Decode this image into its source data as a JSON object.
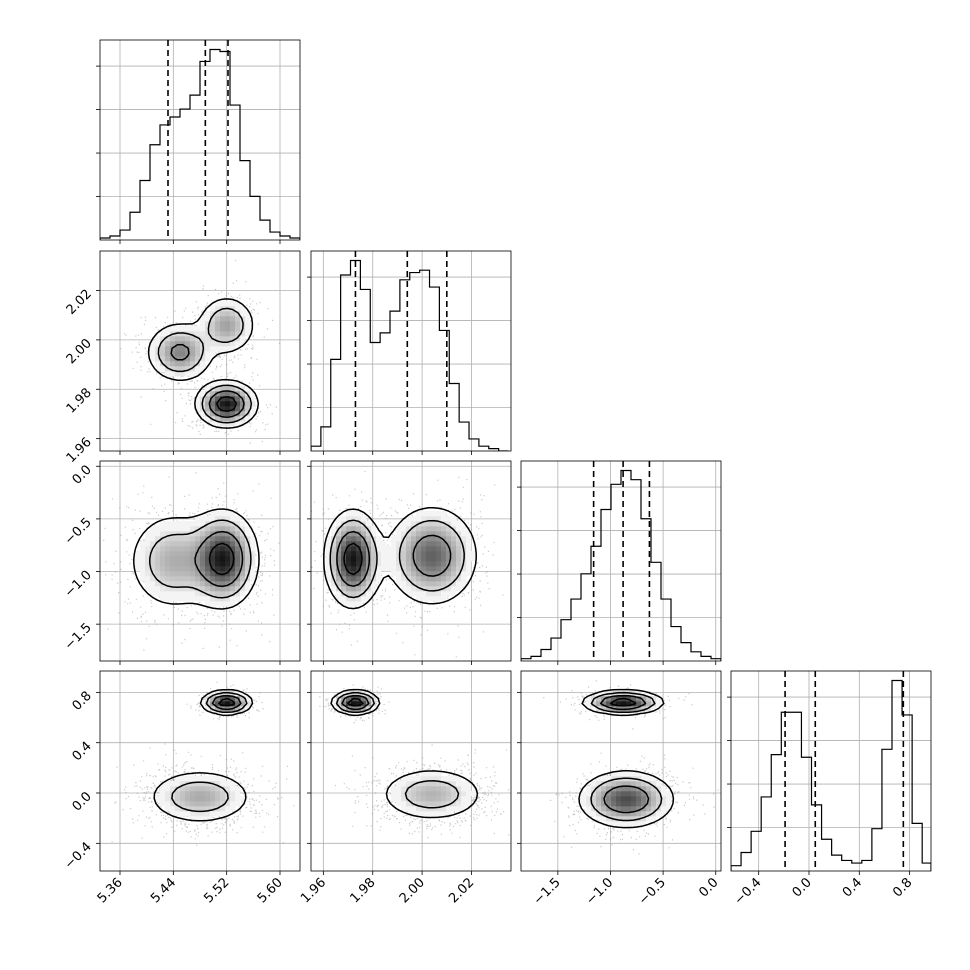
{
  "chart_data": {
    "type": "corner",
    "grid": true,
    "params": [
      {
        "ticks": [
          "5.36",
          "5.44",
          "5.52",
          "5.60"
        ],
        "tick_values": [
          5.36,
          5.44,
          5.52,
          5.6
        ],
        "range": [
          5.33,
          5.63
        ],
        "quantiles": [
          5.432,
          5.488,
          5.522
        ],
        "mode": "unimodal"
      },
      {
        "ticks": [
          "1.96",
          "1.98",
          "2.00",
          "2.02"
        ],
        "tick_values": [
          1.96,
          1.98,
          2.0,
          2.02
        ],
        "range": [
          1.955,
          2.036
        ],
        "quantiles": [
          1.973,
          1.994,
          2.01
        ],
        "mode": "bimodal"
      },
      {
        "ticks": [
          "−1.5",
          "−1.0",
          "−0.5",
          "0.0"
        ],
        "tick_values": [
          -1.5,
          -1.0,
          -0.5,
          0.0
        ],
        "range": [
          -1.85,
          0.05
        ],
        "quantiles": [
          -1.16,
          -0.88,
          -0.63
        ],
        "mode": "unimodal"
      },
      {
        "ticks": [
          "−0.4",
          "0.0",
          "0.4",
          "0.8"
        ],
        "tick_values": [
          -0.4,
          0.0,
          0.4,
          0.8
        ],
        "range": [
          -0.62,
          0.97
        ],
        "quantiles": [
          -0.19,
          0.05,
          0.75
        ],
        "mode": "bimodal"
      }
    ],
    "histograms": [
      {
        "param": 0,
        "bin_edges": [
          5.33,
          5.345,
          5.36,
          5.375,
          5.39,
          5.405,
          5.42,
          5.435,
          5.45,
          5.465,
          5.48,
          5.495,
          5.51,
          5.525,
          5.54,
          5.555,
          5.57,
          5.585,
          5.6,
          5.615,
          5.63
        ],
        "counts": [
          1,
          2,
          5,
          14,
          30,
          48,
          58,
          62,
          66,
          73,
          90,
          96,
          95,
          68,
          40,
          22,
          10,
          4,
          2,
          1
        ]
      },
      {
        "param": 1,
        "bin_edges": [
          1.955,
          1.959,
          1.963,
          1.967,
          1.971,
          1.975,
          1.979,
          1.983,
          1.987,
          1.991,
          1.995,
          1.999,
          2.003,
          2.007,
          2.011,
          2.015,
          2.019,
          2.023,
          2.027,
          2.031,
          2.035
        ],
        "counts": [
          2,
          10,
          38,
          73,
          79,
          67,
          45,
          49,
          58,
          71,
          74,
          75,
          68,
          50,
          28,
          12,
          5,
          2,
          1,
          0
        ]
      },
      {
        "param": 2,
        "bin_edges": [
          -1.85,
          -1.755,
          -1.66,
          -1.565,
          -1.47,
          -1.375,
          -1.28,
          -1.185,
          -1.09,
          -0.995,
          -0.9,
          -0.805,
          -0.71,
          -0.615,
          -0.52,
          -0.425,
          -0.33,
          -0.235,
          -0.14,
          -0.045,
          0.05
        ],
        "counts": [
          1,
          2,
          5,
          10,
          18,
          27,
          38,
          50,
          66,
          77,
          83,
          79,
          62,
          43,
          27,
          15,
          8,
          4,
          2,
          1
        ]
      },
      {
        "param": 3,
        "bin_edges": [
          -0.62,
          -0.54,
          -0.46,
          -0.38,
          -0.3,
          -0.22,
          -0.14,
          -0.06,
          0.02,
          0.1,
          0.18,
          0.26,
          0.34,
          0.42,
          0.5,
          0.58,
          0.66,
          0.74,
          0.82,
          0.9,
          0.97
        ],
        "counts": [
          2,
          7,
          15,
          28,
          44,
          60,
          60,
          43,
          25,
          12,
          6,
          4,
          3,
          4,
          16,
          46,
          72,
          59,
          18,
          3
        ]
      }
    ],
    "joint_modes": [
      {
        "x_param": 0,
        "y_param": 1,
        "modes": [
          [
            5.52,
            1.974
          ],
          [
            5.45,
            1.995
          ],
          [
            5.52,
            2.006
          ]
        ]
      },
      {
        "x_param": 0,
        "y_param": 2,
        "modes": [
          [
            5.515,
            -0.88
          ],
          [
            5.44,
            -0.9
          ]
        ]
      },
      {
        "x_param": 1,
        "y_param": 2,
        "modes": [
          [
            1.972,
            -0.88
          ],
          [
            2.004,
            -0.85
          ]
        ]
      },
      {
        "x_param": 0,
        "y_param": 3,
        "modes": [
          [
            5.52,
            0.72
          ],
          [
            5.48,
            -0.03
          ]
        ]
      },
      {
        "x_param": 1,
        "y_param": 3,
        "modes": [
          [
            1.973,
            0.72
          ],
          [
            2.004,
            -0.01
          ]
        ]
      },
      {
        "x_param": 2,
        "y_param": 3,
        "modes": [
          [
            -0.88,
            0.72
          ],
          [
            -0.85,
            -0.05
          ]
        ]
      }
    ]
  }
}
